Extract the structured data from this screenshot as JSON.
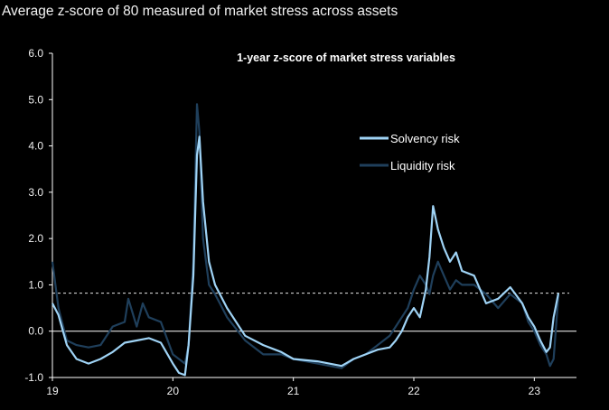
{
  "header": {
    "title": "Average z-score of 80 measured of market stress across assets"
  },
  "chart_data": {
    "type": "line",
    "title": "1-year z-score of market stress variables",
    "xlabel": "",
    "ylabel": "",
    "xlim": [
      2019.0,
      2023.35
    ],
    "ylim": [
      -1.0,
      6.0
    ],
    "yticks": [
      -1.0,
      0.0,
      1.0,
      2.0,
      3.0,
      4.0,
      5.0,
      6.0
    ],
    "ytick_labels": [
      "-1.0",
      "0.0",
      "1.0",
      "2.0",
      "3.0",
      "4.0",
      "5.0",
      "6.0"
    ],
    "xticks": [
      2019,
      2020,
      2021,
      2022,
      2023
    ],
    "xtick_labels": [
      "19",
      "20",
      "21",
      "22",
      "23"
    ],
    "reference_line": {
      "y": 0.82,
      "style": "dashed"
    },
    "legend_position": "upper-right",
    "colors": {
      "solvency": "#9fd3f5",
      "liquidity": "#1f3f5b",
      "reference": "#e6e6e6",
      "axis": "#ffffff"
    },
    "series": [
      {
        "name": "Solvency risk",
        "x": [
          2019.0,
          2019.05,
          2019.12,
          2019.2,
          2019.3,
          2019.4,
          2019.5,
          2019.6,
          2019.7,
          2019.8,
          2019.9,
          2020.0,
          2020.05,
          2020.1,
          2020.13,
          2020.17,
          2020.2,
          2020.22,
          2020.25,
          2020.3,
          2020.35,
          2020.45,
          2020.6,
          2020.75,
          2020.9,
          2021.0,
          2021.2,
          2021.4,
          2021.5,
          2021.6,
          2021.7,
          2021.8,
          2021.85,
          2021.9,
          2021.95,
          2022.0,
          2022.05,
          2022.1,
          2022.13,
          2022.16,
          2022.2,
          2022.25,
          2022.3,
          2022.35,
          2022.4,
          2022.5,
          2022.6,
          2022.7,
          2022.8,
          2022.9,
          2022.95,
          2023.0,
          2023.05,
          2023.1,
          2023.13,
          2023.16,
          2023.2
        ],
        "values": [
          0.6,
          0.35,
          -0.3,
          -0.6,
          -0.7,
          -0.6,
          -0.45,
          -0.25,
          -0.2,
          -0.15,
          -0.25,
          -0.7,
          -0.9,
          -0.95,
          -0.3,
          1.2,
          3.8,
          4.2,
          2.8,
          1.5,
          1.0,
          0.5,
          -0.1,
          -0.3,
          -0.45,
          -0.6,
          -0.65,
          -0.75,
          -0.6,
          -0.5,
          -0.4,
          -0.35,
          -0.2,
          0.0,
          0.3,
          0.5,
          0.3,
          0.9,
          1.6,
          2.7,
          2.2,
          1.8,
          1.5,
          1.7,
          1.3,
          1.2,
          0.6,
          0.7,
          0.95,
          0.6,
          0.3,
          0.1,
          -0.2,
          -0.45,
          -0.35,
          0.3,
          0.82
        ]
      },
      {
        "name": "Liquidity risk",
        "x": [
          2019.0,
          2019.05,
          2019.12,
          2019.2,
          2019.3,
          2019.4,
          2019.5,
          2019.6,
          2019.63,
          2019.7,
          2019.75,
          2019.8,
          2019.9,
          2020.0,
          2020.05,
          2020.1,
          2020.13,
          2020.17,
          2020.2,
          2020.22,
          2020.25,
          2020.3,
          2020.35,
          2020.45,
          2020.6,
          2020.75,
          2020.9,
          2021.0,
          2021.2,
          2021.4,
          2021.5,
          2021.6,
          2021.7,
          2021.8,
          2021.85,
          2021.9,
          2021.95,
          2022.0,
          2022.05,
          2022.1,
          2022.13,
          2022.16,
          2022.2,
          2022.25,
          2022.3,
          2022.35,
          2022.4,
          2022.5,
          2022.6,
          2022.7,
          2022.8,
          2022.9,
          2022.95,
          2023.0,
          2023.05,
          2023.1,
          2023.13,
          2023.16,
          2023.2
        ],
        "values": [
          1.5,
          0.5,
          -0.2,
          -0.3,
          -0.35,
          -0.3,
          0.1,
          0.2,
          0.7,
          0.1,
          0.6,
          0.3,
          0.2,
          -0.5,
          -0.6,
          -0.7,
          -0.3,
          1.5,
          4.9,
          4.3,
          2.0,
          1.0,
          0.8,
          0.3,
          -0.2,
          -0.5,
          -0.5,
          -0.6,
          -0.7,
          -0.8,
          -0.6,
          -0.5,
          -0.3,
          -0.1,
          0.1,
          0.3,
          0.5,
          0.9,
          1.2,
          1.0,
          0.8,
          1.2,
          1.5,
          1.2,
          0.9,
          1.1,
          1.0,
          1.0,
          0.8,
          0.5,
          0.8,
          0.6,
          0.2,
          0.0,
          -0.3,
          -0.5,
          -0.75,
          -0.6,
          0.78
        ]
      }
    ]
  }
}
